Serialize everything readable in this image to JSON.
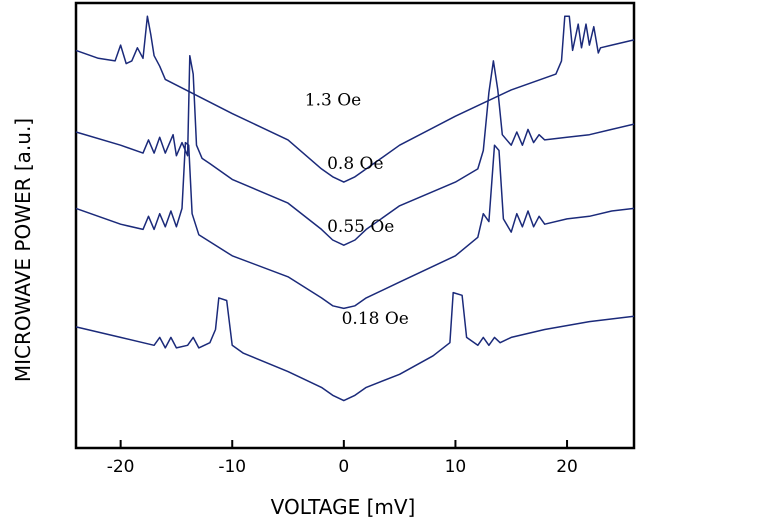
{
  "chart_data": {
    "type": "line",
    "title": "",
    "xlabel": "VOLTAGE [mV]",
    "ylabel": "MICROWAVE POWER [a.u.]",
    "xlim": [
      -24,
      26
    ],
    "xticks": [
      -20,
      -10,
      0,
      10,
      20
    ],
    "xtick_labels": [
      "-20",
      "-10",
      "0",
      "10",
      "20"
    ],
    "yticks": [],
    "grid": false,
    "legend": "none",
    "series_color": "#1b2a7a",
    "series": [
      {
        "label": "1.3 Oe",
        "points": [
          [
            -24,
            0.6
          ],
          [
            -22,
            0.3
          ],
          [
            -20.5,
            0.2
          ],
          [
            -20,
            0.8
          ],
          [
            -19.5,
            0.1
          ],
          [
            -19,
            0.2
          ],
          [
            -18.5,
            0.7
          ],
          [
            -18,
            0.3
          ],
          [
            -17.6,
            1.9
          ],
          [
            -17.3,
            1.2
          ],
          [
            -17,
            0.4
          ],
          [
            -16.5,
            0.0
          ],
          [
            -16,
            -0.5
          ],
          [
            -10,
            -1.8
          ],
          [
            -5,
            -2.8
          ],
          [
            -2,
            -3.9
          ],
          [
            -1,
            -4.2
          ],
          [
            0,
            -4.4
          ],
          [
            1,
            -4.2
          ],
          [
            2,
            -3.9
          ],
          [
            5,
            -3.0
          ],
          [
            10,
            -1.9
          ],
          [
            15,
            -0.9
          ],
          [
            19,
            -0.3
          ],
          [
            19.5,
            0.2
          ],
          [
            19.8,
            1.9
          ],
          [
            20.2,
            1.9
          ],
          [
            20.5,
            0.6
          ],
          [
            21,
            1.6
          ],
          [
            21.3,
            0.7
          ],
          [
            21.7,
            1.6
          ],
          [
            22,
            0.8
          ],
          [
            22.4,
            1.5
          ],
          [
            22.8,
            0.5
          ],
          [
            23,
            0.7
          ],
          [
            24,
            0.8
          ],
          [
            26,
            1.0
          ]
        ]
      },
      {
        "label": "0.8 Oe",
        "points": [
          [
            -24,
            -2.5
          ],
          [
            -20,
            -3.0
          ],
          [
            -18,
            -3.3
          ],
          [
            -17.5,
            -2.8
          ],
          [
            -17,
            -3.3
          ],
          [
            -16.5,
            -2.7
          ],
          [
            -16,
            -3.3
          ],
          [
            -15.3,
            -2.6
          ],
          [
            -15,
            -3.4
          ],
          [
            -14.5,
            -2.9
          ],
          [
            -14,
            -3.4
          ],
          [
            -13.8,
            0.4
          ],
          [
            -13.5,
            -0.3
          ],
          [
            -13.2,
            -3.0
          ],
          [
            -12.7,
            -3.5
          ],
          [
            -12,
            -3.7
          ],
          [
            -10,
            -4.3
          ],
          [
            -5,
            -5.2
          ],
          [
            -2,
            -6.2
          ],
          [
            -1,
            -6.6
          ],
          [
            0,
            -6.8
          ],
          [
            1,
            -6.6
          ],
          [
            2,
            -6.2
          ],
          [
            5,
            -5.3
          ],
          [
            10,
            -4.4
          ],
          [
            12,
            -3.9
          ],
          [
            12.5,
            -3.2
          ],
          [
            13,
            -1.0
          ],
          [
            13.4,
            0.2
          ],
          [
            13.8,
            -0.9
          ],
          [
            14.2,
            -2.6
          ],
          [
            15,
            -3.0
          ],
          [
            15.5,
            -2.5
          ],
          [
            16,
            -3.0
          ],
          [
            16.5,
            -2.4
          ],
          [
            17,
            -2.9
          ],
          [
            17.5,
            -2.6
          ],
          [
            18,
            -2.8
          ],
          [
            20,
            -2.7
          ],
          [
            22,
            -2.6
          ],
          [
            24,
            -2.4
          ],
          [
            26,
            -2.2
          ]
        ]
      },
      {
        "label": "0.55 Oe",
        "points": [
          [
            -24,
            -5.4
          ],
          [
            -20,
            -6.0
          ],
          [
            -18,
            -6.2
          ],
          [
            -17.5,
            -5.7
          ],
          [
            -17,
            -6.2
          ],
          [
            -16.5,
            -5.6
          ],
          [
            -16,
            -6.1
          ],
          [
            -15.5,
            -5.5
          ],
          [
            -15,
            -6.1
          ],
          [
            -14.5,
            -5.4
          ],
          [
            -14.2,
            -2.9
          ],
          [
            -13.9,
            -3.0
          ],
          [
            -13.6,
            -5.6
          ],
          [
            -13,
            -6.4
          ],
          [
            -10,
            -7.2
          ],
          [
            -5,
            -8.0
          ],
          [
            -2,
            -8.8
          ],
          [
            -1,
            -9.1
          ],
          [
            0,
            -9.2
          ],
          [
            1,
            -9.1
          ],
          [
            2,
            -8.8
          ],
          [
            5,
            -8.2
          ],
          [
            10,
            -7.2
          ],
          [
            12,
            -6.5
          ],
          [
            12.5,
            -5.6
          ],
          [
            13,
            -5.9
          ],
          [
            13.5,
            -3.0
          ],
          [
            13.9,
            -3.2
          ],
          [
            14.3,
            -5.8
          ],
          [
            15,
            -6.3
          ],
          [
            15.5,
            -5.6
          ],
          [
            16,
            -6.1
          ],
          [
            16.5,
            -5.5
          ],
          [
            17,
            -6.1
          ],
          [
            17.5,
            -5.7
          ],
          [
            18,
            -6.0
          ],
          [
            20,
            -5.8
          ],
          [
            22,
            -5.7
          ],
          [
            24,
            -5.5
          ],
          [
            26,
            -5.4
          ]
        ]
      },
      {
        "label": "0.18 Oe",
        "points": [
          [
            -24,
            -9.9
          ],
          [
            -20,
            -10.3
          ],
          [
            -17,
            -10.6
          ],
          [
            -16.5,
            -10.3
          ],
          [
            -16,
            -10.7
          ],
          [
            -15.5,
            -10.3
          ],
          [
            -15,
            -10.7
          ],
          [
            -14,
            -10.6
          ],
          [
            -13.5,
            -10.3
          ],
          [
            -13,
            -10.7
          ],
          [
            -12,
            -10.5
          ],
          [
            -11.5,
            -10.0
          ],
          [
            -11.2,
            -8.8
          ],
          [
            -10.5,
            -8.9
          ],
          [
            -10,
            -10.6
          ],
          [
            -9,
            -10.9
          ],
          [
            -5,
            -11.6
          ],
          [
            -2,
            -12.2
          ],
          [
            -1,
            -12.5
          ],
          [
            0,
            -12.7
          ],
          [
            1,
            -12.5
          ],
          [
            2,
            -12.2
          ],
          [
            5,
            -11.7
          ],
          [
            8,
            -11.0
          ],
          [
            9.5,
            -10.5
          ],
          [
            9.8,
            -8.6
          ],
          [
            10.6,
            -8.7
          ],
          [
            11,
            -10.3
          ],
          [
            12,
            -10.6
          ],
          [
            12.5,
            -10.3
          ],
          [
            13,
            -10.6
          ],
          [
            13.5,
            -10.3
          ],
          [
            14,
            -10.5
          ],
          [
            15,
            -10.3
          ],
          [
            18,
            -10.0
          ],
          [
            22,
            -9.7
          ],
          [
            26,
            -9.5
          ]
        ]
      }
    ]
  }
}
